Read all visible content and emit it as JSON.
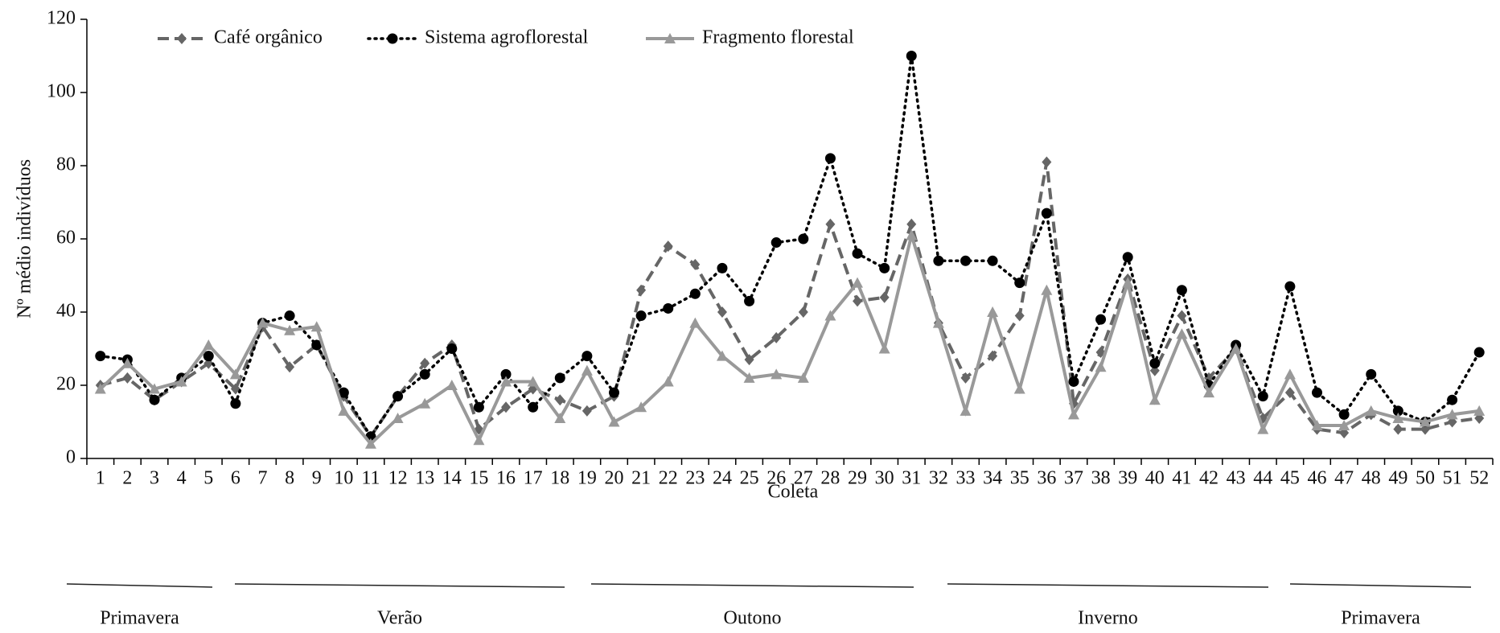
{
  "chart_data": {
    "type": "line",
    "y_label": "Nº médio indivíduos",
    "x_label": "Coleta",
    "categories": [
      "1",
      "2",
      "3",
      "4",
      "5",
      "6",
      "7",
      "8",
      "9",
      "10",
      "11",
      "12",
      "13",
      "14",
      "15",
      "16",
      "17",
      "18",
      "19",
      "20",
      "21",
      "22",
      "23",
      "24",
      "25",
      "26",
      "27",
      "28",
      "29",
      "30",
      "31",
      "32",
      "33",
      "34",
      "35",
      "36",
      "37",
      "38",
      "39",
      "40",
      "41",
      "42",
      "43",
      "44",
      "45",
      "46",
      "47",
      "48",
      "49",
      "50",
      "51",
      "52"
    ],
    "series": [
      {
        "name": "Café orgânico",
        "color": "#666666",
        "dash": "dashed",
        "marker": "diamond",
        "values": [
          20,
          22,
          16,
          21,
          26,
          19,
          36,
          25,
          31,
          17,
          6,
          17,
          26,
          31,
          8,
          14,
          19,
          16,
          13,
          17,
          46,
          58,
          53,
          40,
          27,
          33,
          40,
          64,
          43,
          44,
          64,
          37,
          22,
          28,
          39,
          81,
          15,
          29,
          49,
          24,
          39,
          22,
          30,
          11,
          18,
          8,
          7,
          12,
          8,
          8,
          10,
          11
        ]
      },
      {
        "name": "Sistema agroflorestal",
        "color": "#000000",
        "dash": "dotted",
        "marker": "circle",
        "values": [
          28,
          27,
          16,
          22,
          28,
          15,
          37,
          39,
          31,
          18,
          6,
          17,
          23,
          30,
          14,
          23,
          14,
          22,
          28,
          18,
          39,
          41,
          45,
          52,
          43,
          59,
          60,
          82,
          56,
          52,
          110,
          54,
          54,
          54,
          48,
          67,
          21,
          38,
          55,
          26,
          46,
          20,
          31,
          17,
          47,
          18,
          12,
          23,
          13,
          10,
          16,
          29
        ]
      },
      {
        "name": "Fragmento florestal",
        "color": "#999999",
        "dash": "solid",
        "marker": "triangle",
        "values": [
          19,
          26,
          19,
          21,
          31,
          23,
          37,
          35,
          36,
          13,
          4,
          11,
          15,
          20,
          5,
          21,
          21,
          11,
          24,
          10,
          14,
          21,
          37,
          28,
          22,
          23,
          22,
          39,
          48,
          30,
          61,
          37,
          13,
          40,
          19,
          46,
          12,
          25,
          48,
          16,
          34,
          18,
          30,
          8,
          23,
          9,
          9,
          13,
          11,
          10,
          12,
          13
        ]
      }
    ],
    "ylim": [
      0,
      120
    ],
    "yticks": [
      0,
      20,
      40,
      60,
      80,
      100,
      120
    ],
    "seasons": [
      "Primavera",
      "Verão",
      "Outono",
      "Inverno",
      "Primavera"
    ]
  }
}
